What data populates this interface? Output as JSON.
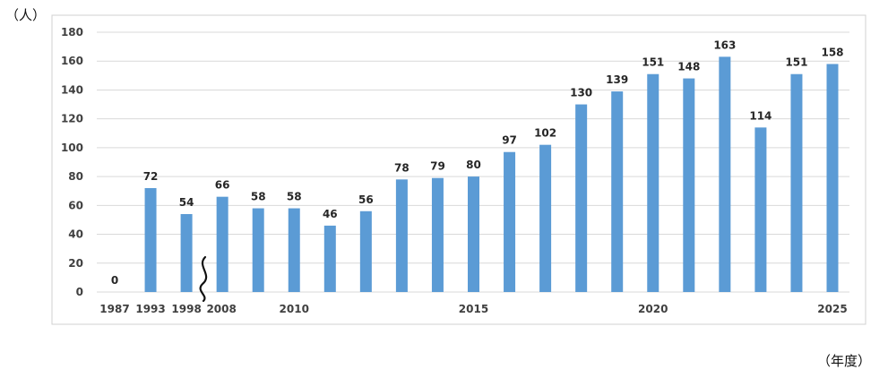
{
  "y_unit_label": "（人）",
  "x_unit_label": "（年度）",
  "colors": {
    "bar": "#5b9bd5",
    "grid": "#d9d9d9",
    "frame": "#d0d0d0",
    "text": "#404040",
    "value_text": "#262626"
  },
  "chart_data": {
    "type": "bar",
    "title": "",
    "xlabel": "（年度）",
    "ylabel": "（人）",
    "ylim": [
      0,
      180
    ],
    "yticks": [
      0,
      20,
      40,
      60,
      80,
      100,
      120,
      140,
      160,
      180
    ],
    "grid": true,
    "legend": "none",
    "axis_break": "between 1998 and 2008",
    "categories": [
      "1987",
      "1993",
      "1998",
      "2008",
      "2009",
      "2010",
      "2011",
      "2012",
      "2013",
      "2014",
      "2015",
      "2016",
      "2017",
      "2018",
      "2019",
      "2020",
      "2021",
      "2022",
      "2023",
      "2024",
      "2025"
    ],
    "tick_labels": [
      "1987",
      "1993",
      "1998",
      "2008",
      "",
      "2010",
      "",
      "",
      "",
      "",
      "2015",
      "",
      "",
      "",
      "",
      "2020",
      "",
      "",
      "",
      "",
      "2025"
    ],
    "values": [
      0,
      72,
      54,
      66,
      58,
      58,
      46,
      56,
      78,
      79,
      80,
      97,
      102,
      130,
      139,
      151,
      148,
      163,
      114,
      151,
      158
    ]
  }
}
